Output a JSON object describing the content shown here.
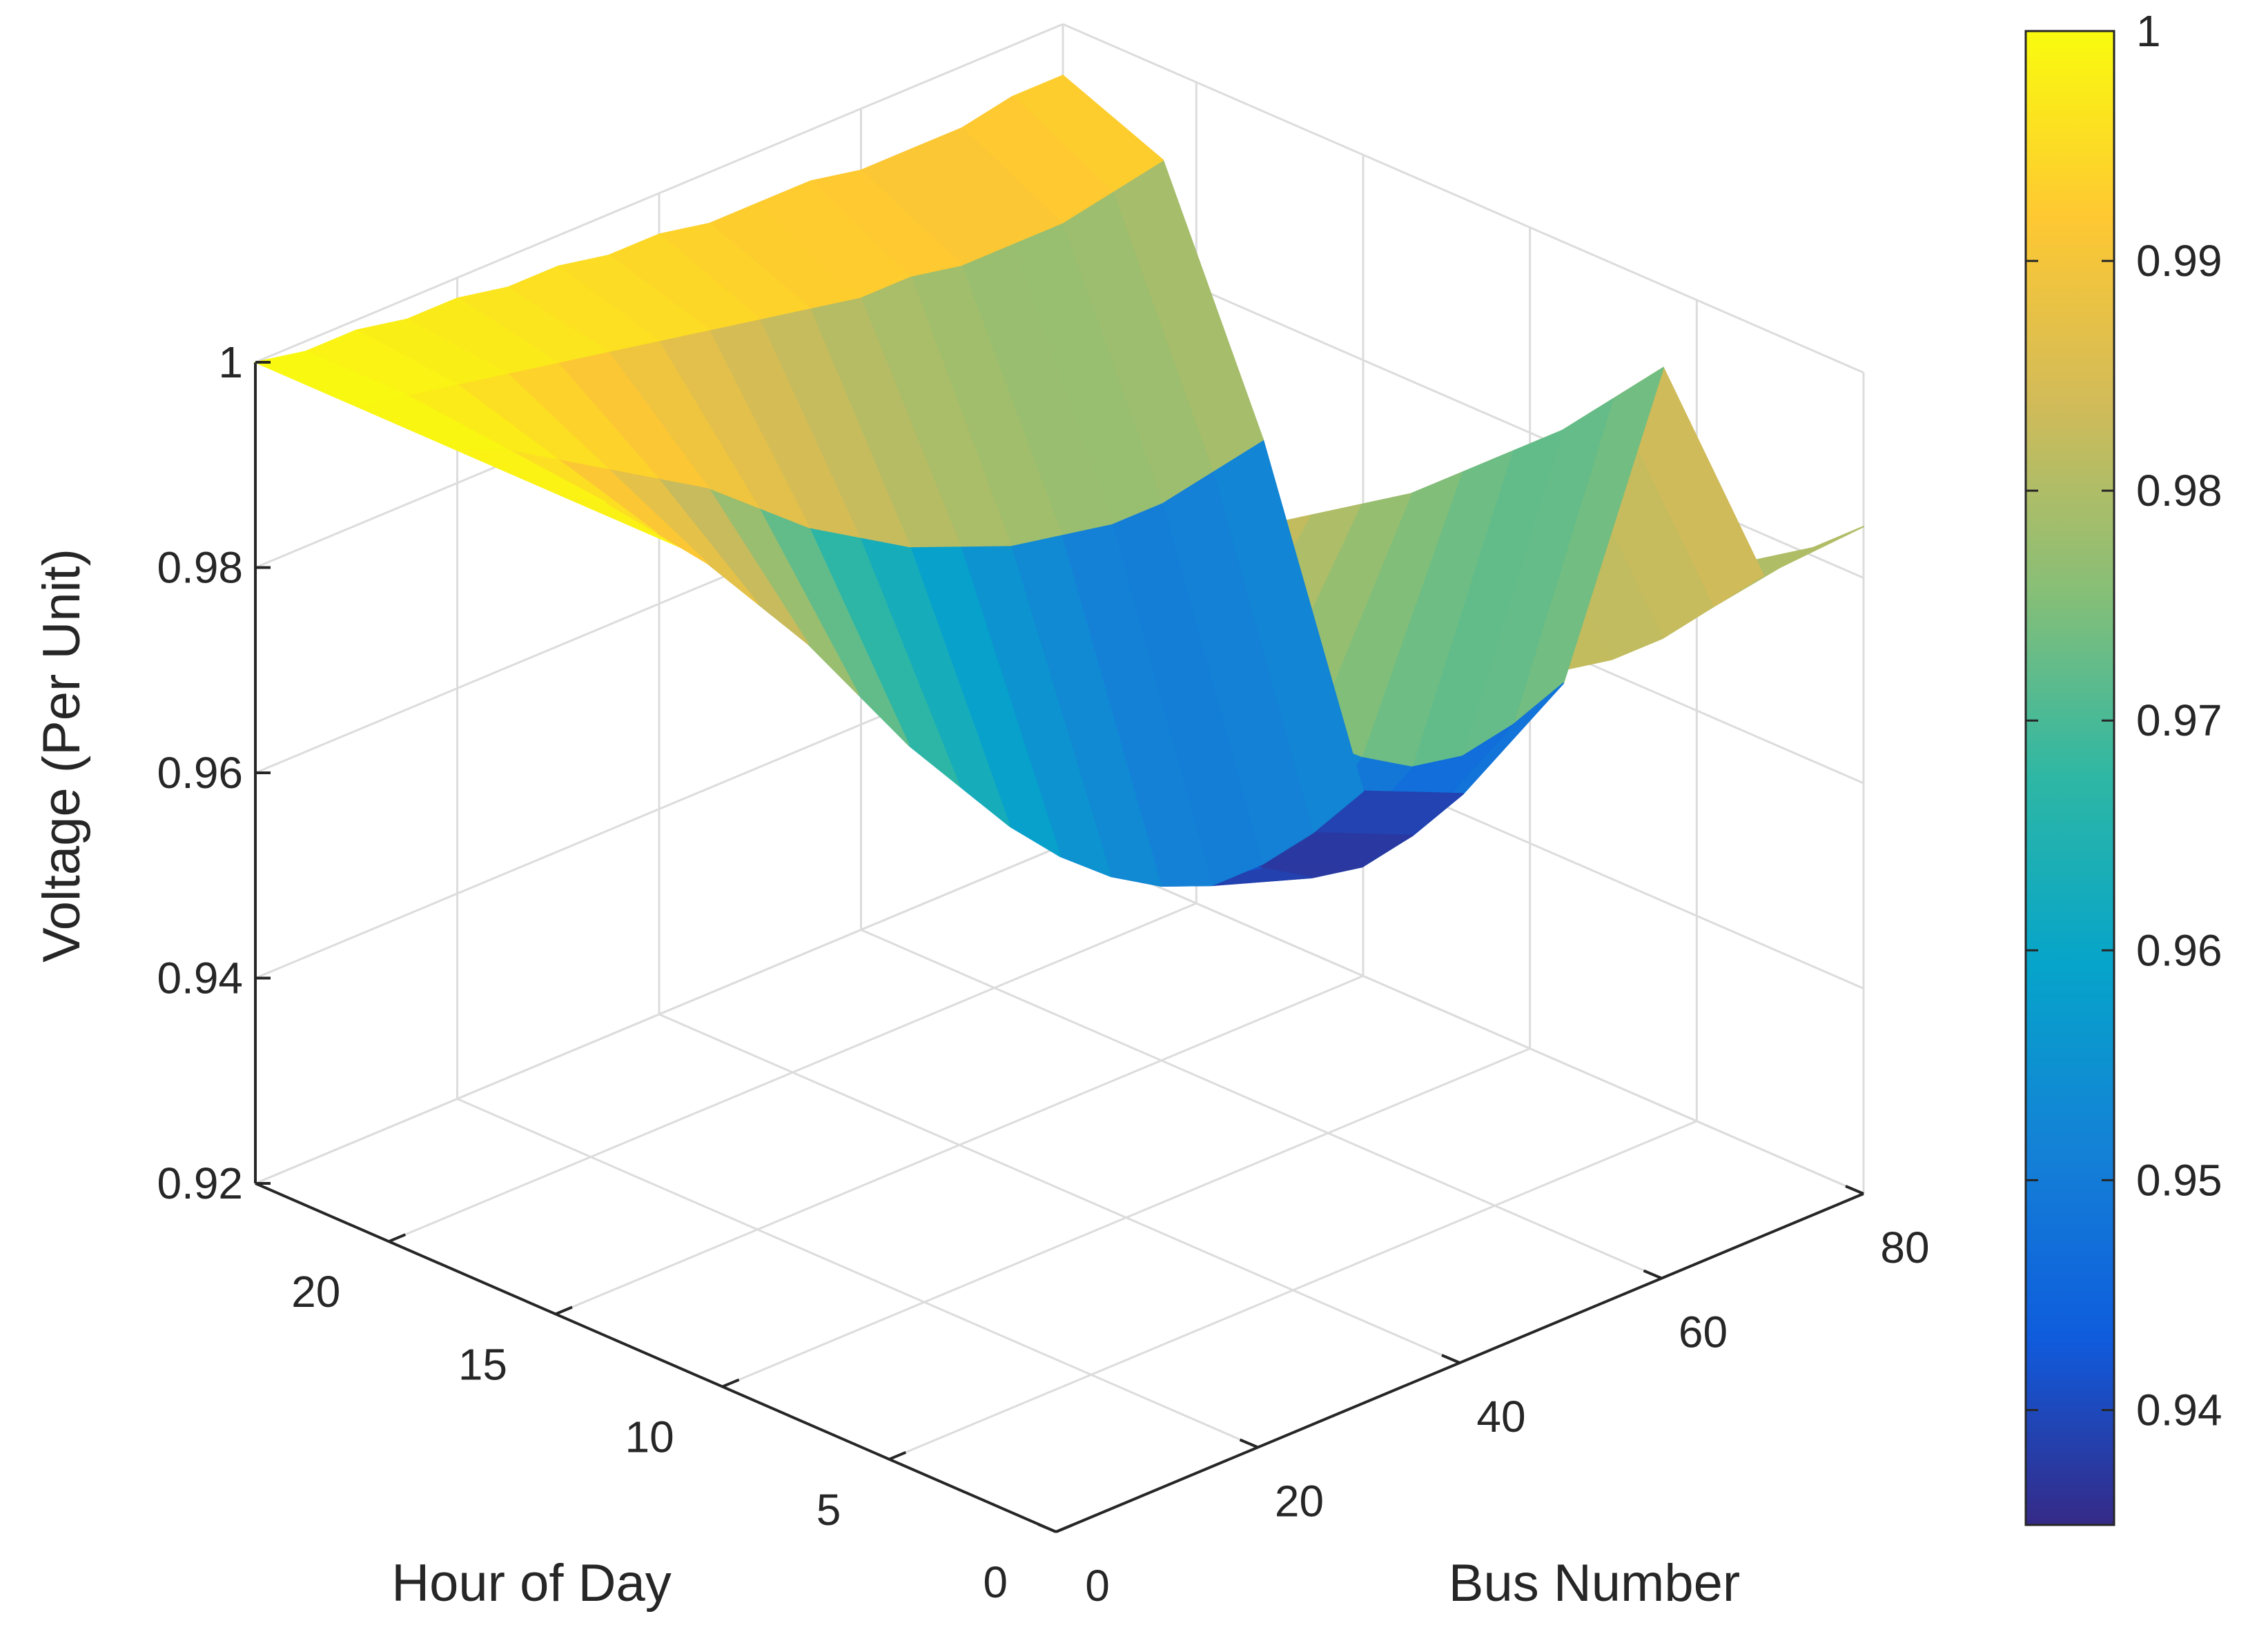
{
  "chart_data": {
    "type": "surface",
    "xlabel": "Hour of Day",
    "ylabel": "Bus Number",
    "zlabel": "Voltage (Per Unit)",
    "xlim": [
      0,
      24
    ],
    "ylim": [
      0,
      80
    ],
    "zlim": [
      0.92,
      1.0
    ],
    "x_ticks": [
      "0",
      "5",
      "10",
      "15",
      "20"
    ],
    "y_ticks": [
      "0",
      "20",
      "40",
      "60",
      "80"
    ],
    "z_ticks": [
      "0.92",
      "0.94",
      "0.96",
      "0.98",
      "1"
    ],
    "colorbar": {
      "colormap": "parula",
      "limits": [
        0.935,
        1.0
      ],
      "ticks": [
        "0.94",
        "0.95",
        "0.96",
        "0.97",
        "0.98",
        "0.99",
        "1"
      ],
      "colors": [
        "#352a87",
        "#0f5cdd",
        "#1481d6",
        "#06a4ca",
        "#2eb7a4",
        "#87bf77",
        "#d1bb59",
        "#fec832",
        "#f9fb0e"
      ]
    },
    "grid": true,
    "hours": [
      0,
      3,
      6,
      9,
      12,
      15,
      18,
      21,
      24
    ],
    "bus_numbers": [
      0,
      5,
      10,
      15,
      20,
      25,
      30,
      35,
      40,
      45,
      50,
      55,
      60,
      65,
      70,
      75,
      80
    ],
    "voltage_by_hour": [
      [
        1.0,
        0.999,
        0.998,
        0.997,
        0.996,
        0.995,
        0.994,
        0.993,
        0.992,
        0.991,
        0.99,
        0.989,
        0.988,
        0.987,
        0.986,
        0.985,
        0.985
      ],
      [
        1.0,
        0.998,
        0.996,
        0.994,
        0.992,
        0.99,
        0.988,
        0.985,
        0.983,
        0.981,
        0.978,
        0.976,
        0.975,
        0.974,
        0.974,
        0.975,
        0.976
      ],
      [
        1.0,
        0.999,
        0.998,
        0.997,
        0.997,
        0.996,
        0.995,
        0.994,
        0.993,
        0.992,
        0.991,
        0.99,
        0.99,
        0.99,
        0.99,
        0.991,
        0.992
      ],
      [
        1.0,
        0.998,
        0.995,
        0.992,
        0.989,
        0.986,
        0.982,
        0.978,
        0.974,
        0.97,
        0.966,
        0.962,
        0.958,
        0.955,
        0.954,
        0.955,
        0.957
      ],
      [
        1.0,
        0.997,
        0.993,
        0.988,
        0.983,
        0.978,
        0.972,
        0.966,
        0.96,
        0.955,
        0.95,
        0.946,
        0.943,
        0.94,
        0.939,
        0.94,
        0.942
      ],
      [
        1.0,
        0.997,
        0.992,
        0.987,
        0.981,
        0.975,
        0.968,
        0.961,
        0.955,
        0.949,
        0.944,
        0.94,
        0.937,
        0.935,
        0.935,
        0.936,
        0.938
      ],
      [
        1.0,
        0.998,
        0.995,
        0.992,
        0.989,
        0.986,
        0.982,
        0.978,
        0.975,
        0.972,
        0.97,
        0.968,
        0.967,
        0.966,
        0.966,
        0.967,
        0.968
      ],
      [
        1.0,
        0.999,
        0.998,
        0.997,
        0.996,
        0.995,
        0.994,
        0.993,
        0.992,
        0.991,
        0.99,
        0.99,
        0.989,
        0.989,
        0.989,
        0.99,
        0.991
      ],
      [
        1.0,
        0.999,
        0.999,
        0.998,
        0.998,
        0.997,
        0.997,
        0.996,
        0.996,
        0.995,
        0.995,
        0.995,
        0.994,
        0.994,
        0.994,
        0.995,
        0.995
      ]
    ]
  }
}
